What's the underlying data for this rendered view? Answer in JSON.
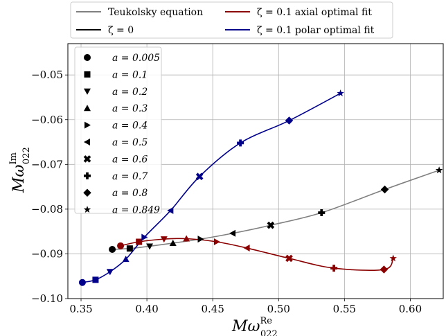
{
  "chart_data": {
    "type": "line",
    "xlabel": {
      "main": "Mω",
      "sup": "Re",
      "sub": "022"
    },
    "ylabel": {
      "main": "Mω",
      "sup": "Im",
      "sub": "022"
    },
    "xlim": [
      0.34,
      0.625
    ],
    "ylim": [
      -0.1,
      -0.043
    ],
    "xticks": [
      0.35,
      0.4,
      0.45,
      0.5,
      0.55,
      0.6
    ],
    "xtick_labels": [
      "0.35",
      "0.40",
      "0.45",
      "0.50",
      "0.55",
      "0.60"
    ],
    "yticks": [
      -0.1,
      -0.09,
      -0.08,
      -0.07,
      -0.06,
      -0.05
    ],
    "ytick_labels": [
      "−0.10",
      "−0.09",
      "−0.08",
      "−0.07",
      "−0.06",
      "−0.05"
    ],
    "grid": true,
    "legend_top": {
      "placement": "above-plot",
      "entries": [
        {
          "label": "Teukolsky equation",
          "color": "#808080"
        },
        {
          "label": "ζ = 0",
          "color": "#000000"
        },
        {
          "label": "ζ = 0.1 axial optimal fit",
          "color": "#8b0000"
        },
        {
          "label": "ζ = 0.1 polar optimal fit",
          "color": "#00008b"
        }
      ]
    },
    "spin_legend": {
      "placement": "upper-left",
      "entries": [
        {
          "label": "a = 0.005",
          "marker": "circle"
        },
        {
          "label": "a = 0.1",
          "marker": "square"
        },
        {
          "label": "a = 0.2",
          "marker": "triangle-down"
        },
        {
          "label": "a = 0.3",
          "marker": "triangle-up"
        },
        {
          "label": "a = 0.4",
          "marker": "triangle-right"
        },
        {
          "label": "a = 0.5",
          "marker": "triangle-left"
        },
        {
          "label": "a = 0.6",
          "marker": "x"
        },
        {
          "label": "a = 0.7",
          "marker": "plus"
        },
        {
          "label": "a = 0.8",
          "marker": "diamond"
        },
        {
          "label": "a = 0.849",
          "marker": "star"
        }
      ]
    },
    "series": [
      {
        "name": "Teukolsky equation",
        "color": "#808080",
        "points": [
          [
            0.3737,
            -0.089
          ],
          [
            0.387,
            -0.0888
          ],
          [
            0.4021,
            -0.0883
          ],
          [
            0.4198,
            -0.0876
          ],
          [
            0.4407,
            -0.0867
          ],
          [
            0.4652,
            -0.0854
          ],
          [
            0.494,
            -0.0836
          ],
          [
            0.5326,
            -0.0808
          ],
          [
            0.5806,
            -0.0756
          ],
          [
            0.6219,
            -0.0713
          ]
        ]
      },
      {
        "name": "ζ = 0",
        "color": "#000000",
        "points": [
          [
            0.3737,
            -0.089
          ],
          [
            0.387,
            -0.0888
          ],
          [
            0.4021,
            -0.0883
          ],
          [
            0.4198,
            -0.0876
          ],
          [
            0.4407,
            -0.0867
          ],
          [
            0.4652,
            -0.0854
          ],
          [
            0.494,
            -0.0836
          ],
          [
            0.5326,
            -0.0808
          ],
          [
            0.5806,
            -0.0756
          ],
          [
            0.6219,
            -0.0713
          ]
        ]
      },
      {
        "name": "ζ = 0.1 axial optimal fit",
        "color": "#8b0000",
        "points": [
          [
            0.38,
            -0.0882
          ],
          [
            0.394,
            -0.0873
          ],
          [
            0.413,
            -0.0867
          ],
          [
            0.43,
            -0.0866
          ],
          [
            0.453,
            -0.0873
          ],
          [
            0.476,
            -0.0887
          ],
          [
            0.508,
            -0.091
          ],
          [
            0.542,
            -0.0932
          ],
          [
            0.58,
            -0.0935
          ],
          [
            0.587,
            -0.091
          ]
        ]
      },
      {
        "name": "ζ = 0.1 polar optimal fit",
        "color": "#00008b",
        "points": [
          [
            0.351,
            -0.0964
          ],
          [
            0.361,
            -0.0958
          ],
          [
            0.372,
            -0.094
          ],
          [
            0.384,
            -0.0912
          ],
          [
            0.398,
            -0.0863
          ],
          [
            0.418,
            -0.0803
          ],
          [
            0.44,
            -0.0727
          ],
          [
            0.471,
            -0.0652
          ],
          [
            0.508,
            -0.0602
          ],
          [
            0.547,
            -0.0541
          ]
        ]
      }
    ]
  }
}
